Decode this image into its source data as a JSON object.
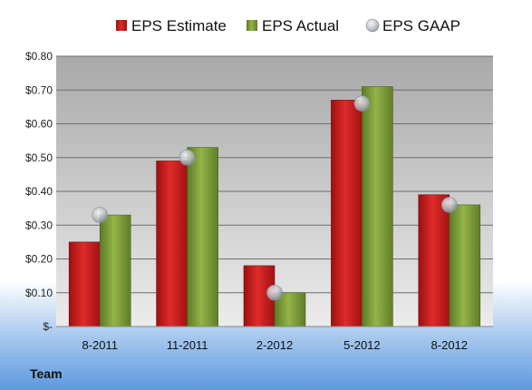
{
  "chart_data": {
    "type": "bar",
    "categories": [
      "8-2011",
      "11-2011",
      "2-2012",
      "5-2012",
      "8-2012"
    ],
    "series": [
      {
        "name": "EPS Estimate",
        "kind": "bar",
        "color": "#cc1f1f",
        "values": [
          0.25,
          0.49,
          0.18,
          0.67,
          0.39
        ]
      },
      {
        "name": "EPS Actual",
        "kind": "bar",
        "color": "#7f9f3a",
        "values": [
          0.33,
          0.53,
          0.1,
          0.71,
          0.36
        ]
      },
      {
        "name": "EPS GAAP",
        "kind": "marker",
        "color": "#b8bcc4",
        "values": [
          0.33,
          0.5,
          0.1,
          0.66,
          0.36
        ]
      }
    ],
    "yticks": [
      0,
      0.1,
      0.2,
      0.3,
      0.4,
      0.5,
      0.6,
      0.7,
      0.8
    ],
    "ytick_labels": [
      "$-",
      "$0.10",
      "$0.20",
      "$0.30",
      "$0.40",
      "$0.50",
      "$0.60",
      "$0.70",
      "$0.80"
    ],
    "ylim": [
      0,
      0.8
    ],
    "grid": true,
    "legend_position": "top",
    "xlabel": "Team"
  }
}
